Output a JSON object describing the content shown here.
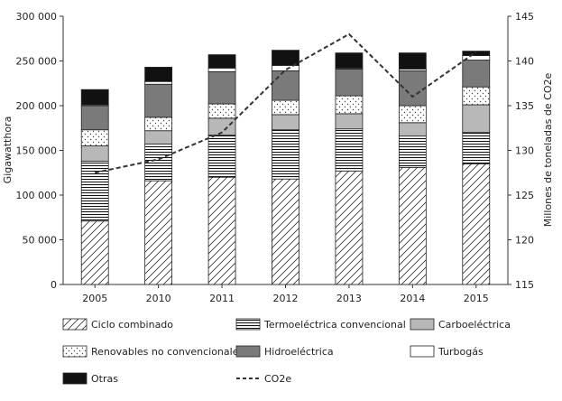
{
  "chart_data": {
    "type": "bar",
    "stacked": true,
    "categories": [
      "2005",
      "2010",
      "2011",
      "2012",
      "2013",
      "2014",
      "2015"
    ],
    "series": [
      {
        "name": "Ciclo combinado",
        "values": [
          71000,
          116000,
          120000,
          118000,
          127000,
          131000,
          135000
        ],
        "pattern": "diagonal-hatch"
      },
      {
        "name": "Termoeléctrica convencional",
        "values": [
          67000,
          41000,
          47000,
          55000,
          47000,
          35000,
          35000
        ],
        "pattern": "horizontal-lines"
      },
      {
        "name": "Carboeléctrica",
        "values": [
          17000,
          15000,
          19000,
          17000,
          17000,
          15000,
          31000
        ],
        "color": "#b8b8b8"
      },
      {
        "name": "Renovables no convencionales",
        "values": [
          18000,
          15000,
          16000,
          16000,
          20000,
          19000,
          20000
        ],
        "pattern": "dots"
      },
      {
        "name": "Hidroeléctrica",
        "values": [
          27000,
          37000,
          36000,
          33000,
          30000,
          39000,
          30000
        ],
        "color": "#7a7a7a"
      },
      {
        "name": "Turbogás",
        "values": [
          1000,
          3000,
          4000,
          6000,
          1000,
          2000,
          5000
        ],
        "color": "#ffffff"
      },
      {
        "name": "Otras",
        "values": [
          17000,
          16000,
          15000,
          17000,
          17000,
          18000,
          5000
        ],
        "color": "#111111"
      }
    ],
    "line_series": {
      "name": "CO2e",
      "values": [
        127.5,
        129,
        132,
        139,
        143,
        136,
        141
      ],
      "style": "dashed",
      "axis": "right"
    },
    "ylabel": "Gigawatthora",
    "y2label": "Millones de toneladas de CO2e",
    "ylim": [
      0,
      300000
    ],
    "y2lim": [
      115,
      145
    ],
    "yticks": [
      "0",
      "50 000",
      "100 000",
      "150 000",
      "200 000",
      "250 000",
      "300 000"
    ],
    "y2ticks": [
      "115",
      "120",
      "125",
      "130",
      "135",
      "140",
      "145"
    ],
    "grid": false,
    "legend_position": "bottom"
  }
}
